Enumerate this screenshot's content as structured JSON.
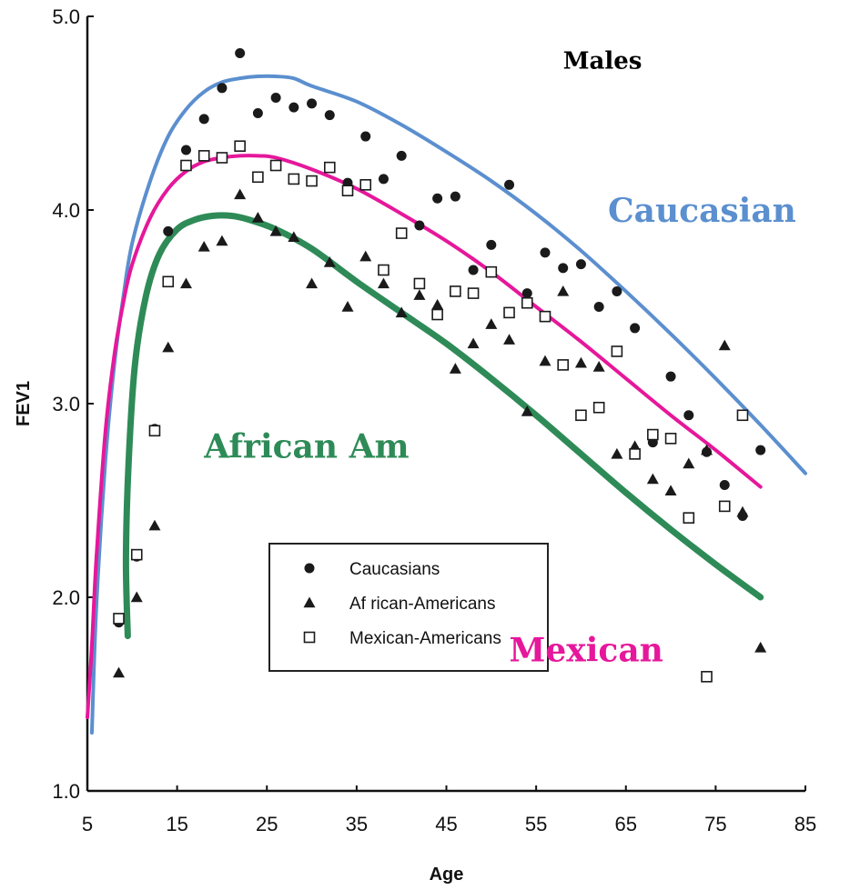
{
  "chart_data": {
    "type": "scatter",
    "title": "",
    "xlabel": "Age",
    "ylabel": "FEV1",
    "xlim": [
      5,
      85
    ],
    "ylim": [
      1.0,
      5.0
    ],
    "x_ticks": [
      5,
      15,
      25,
      35,
      45,
      55,
      65,
      75,
      85
    ],
    "x_tick_labels": [
      "5",
      "15",
      "25",
      "35",
      "45",
      "55",
      "65",
      "75",
      "85"
    ],
    "y_ticks": [
      1.0,
      2.0,
      3.0,
      4.0,
      5.0
    ],
    "y_tick_labels": [
      "1.0",
      "2.0",
      "3.0",
      "4.0",
      "5.0"
    ],
    "grid": false,
    "legend_position": "bottom-center",
    "series": [
      {
        "name": "Caucasians",
        "marker": "circle",
        "points": [
          [
            8.5,
            1.87
          ],
          [
            10.5,
            2.21
          ],
          [
            12.5,
            2.87
          ],
          [
            14,
            3.89
          ],
          [
            16,
            4.31
          ],
          [
            18,
            4.47
          ],
          [
            20,
            4.63
          ],
          [
            22,
            4.81
          ],
          [
            24,
            4.5
          ],
          [
            26,
            4.58
          ],
          [
            28,
            4.53
          ],
          [
            30,
            4.55
          ],
          [
            32,
            4.49
          ],
          [
            34,
            4.14
          ],
          [
            36,
            4.38
          ],
          [
            38,
            4.16
          ],
          [
            40,
            4.28
          ],
          [
            42,
            3.92
          ],
          [
            44,
            4.06
          ],
          [
            46,
            4.07
          ],
          [
            48,
            3.69
          ],
          [
            50,
            3.82
          ],
          [
            52,
            4.13
          ],
          [
            54,
            3.57
          ],
          [
            56,
            3.78
          ],
          [
            58,
            3.7
          ],
          [
            60,
            3.72
          ],
          [
            62,
            3.5
          ],
          [
            64,
            3.58
          ],
          [
            66,
            3.39
          ],
          [
            68,
            2.8
          ],
          [
            70,
            3.14
          ],
          [
            72,
            2.94
          ],
          [
            74,
            2.75
          ],
          [
            76,
            2.58
          ],
          [
            78,
            2.42
          ],
          [
            80,
            2.76
          ]
        ]
      },
      {
        "name": "African-Americans",
        "marker": "triangle",
        "points": [
          [
            8.5,
            1.61
          ],
          [
            10.5,
            2.0
          ],
          [
            12.5,
            2.37
          ],
          [
            14,
            3.29
          ],
          [
            16,
            3.62
          ],
          [
            18,
            3.81
          ],
          [
            20,
            3.84
          ],
          [
            22,
            4.08
          ],
          [
            24,
            3.96
          ],
          [
            26,
            3.89
          ],
          [
            28,
            3.86
          ],
          [
            30,
            3.62
          ],
          [
            32,
            3.73
          ],
          [
            34,
            3.5
          ],
          [
            36,
            3.76
          ],
          [
            38,
            3.62
          ],
          [
            40,
            3.47
          ],
          [
            42,
            3.56
          ],
          [
            44,
            3.51
          ],
          [
            46,
            3.18
          ],
          [
            48,
            3.31
          ],
          [
            50,
            3.41
          ],
          [
            52,
            3.33
          ],
          [
            54,
            2.96
          ],
          [
            56,
            3.22
          ],
          [
            58,
            3.58
          ],
          [
            60,
            3.21
          ],
          [
            62,
            3.19
          ],
          [
            64,
            2.74
          ],
          [
            66,
            2.78
          ],
          [
            68,
            2.61
          ],
          [
            70,
            2.55
          ],
          [
            72,
            2.69
          ],
          [
            74,
            2.76
          ],
          [
            76,
            3.3
          ],
          [
            78,
            2.44
          ],
          [
            80,
            1.74
          ]
        ]
      },
      {
        "name": "Mexican-Americans",
        "marker": "square",
        "points": [
          [
            8.5,
            1.89
          ],
          [
            10.5,
            2.22
          ],
          [
            12.5,
            2.86
          ],
          [
            14,
            3.63
          ],
          [
            16,
            4.23
          ],
          [
            18,
            4.28
          ],
          [
            20,
            4.27
          ],
          [
            22,
            4.33
          ],
          [
            24,
            4.17
          ],
          [
            26,
            4.23
          ],
          [
            28,
            4.16
          ],
          [
            30,
            4.15
          ],
          [
            32,
            4.22
          ],
          [
            34,
            4.1
          ],
          [
            36,
            4.13
          ],
          [
            38,
            3.69
          ],
          [
            40,
            3.88
          ],
          [
            42,
            3.62
          ],
          [
            44,
            3.46
          ],
          [
            46,
            3.58
          ],
          [
            48,
            3.57
          ],
          [
            50,
            3.68
          ],
          [
            52,
            3.47
          ],
          [
            54,
            3.52
          ],
          [
            56,
            3.45
          ],
          [
            58,
            3.2
          ],
          [
            60,
            2.94
          ],
          [
            62,
            2.98
          ],
          [
            64,
            3.27
          ],
          [
            66,
            2.74
          ],
          [
            68,
            2.84
          ],
          [
            70,
            2.82
          ],
          [
            72,
            2.41
          ],
          [
            74,
            1.59
          ],
          [
            76,
            2.47
          ],
          [
            78,
            2.94
          ]
        ]
      }
    ],
    "fitted_curves": [
      {
        "label": "Caucasian",
        "color": "#5b8fcf",
        "points": [
          [
            5.5,
            1.3
          ],
          [
            6,
            1.95
          ],
          [
            7,
            2.7
          ],
          [
            8,
            3.2
          ],
          [
            9,
            3.55
          ],
          [
            10,
            3.83
          ],
          [
            12,
            4.15
          ],
          [
            14,
            4.38
          ],
          [
            16,
            4.52
          ],
          [
            18,
            4.61
          ],
          [
            20,
            4.66
          ],
          [
            22,
            4.68
          ],
          [
            24,
            4.69
          ],
          [
            26,
            4.69
          ],
          [
            28,
            4.68
          ],
          [
            30,
            4.64
          ],
          [
            35,
            4.56
          ],
          [
            40,
            4.44
          ],
          [
            45,
            4.3
          ],
          [
            50,
            4.15
          ],
          [
            55,
            3.98
          ],
          [
            60,
            3.79
          ],
          [
            65,
            3.58
          ],
          [
            70,
            3.36
          ],
          [
            75,
            3.13
          ],
          [
            80,
            2.89
          ],
          [
            85,
            2.64
          ]
        ]
      },
      {
        "label": "Mexican",
        "color": "#e6179b",
        "points": [
          [
            5,
            1.38
          ],
          [
            5.5,
            1.75
          ],
          [
            6,
            2.2
          ],
          [
            7,
            2.85
          ],
          [
            8,
            3.25
          ],
          [
            9,
            3.52
          ],
          [
            10,
            3.72
          ],
          [
            12,
            3.96
          ],
          [
            14,
            4.11
          ],
          [
            16,
            4.2
          ],
          [
            18,
            4.25
          ],
          [
            20,
            4.27
          ],
          [
            22,
            4.28
          ],
          [
            24,
            4.28
          ],
          [
            26,
            4.27
          ],
          [
            30,
            4.21
          ],
          [
            35,
            4.11
          ],
          [
            40,
            3.98
          ],
          [
            45,
            3.84
          ],
          [
            50,
            3.68
          ],
          [
            55,
            3.5
          ],
          [
            60,
            3.32
          ],
          [
            65,
            3.13
          ],
          [
            70,
            2.94
          ],
          [
            75,
            2.76
          ],
          [
            80,
            2.57
          ]
        ]
      },
      {
        "label": "African Am",
        "color": "#2e8b57",
        "points": [
          [
            9.5,
            1.8
          ],
          [
            9.3,
            2.2
          ],
          [
            9.6,
            2.7
          ],
          [
            10.3,
            3.2
          ],
          [
            11.5,
            3.55
          ],
          [
            13,
            3.77
          ],
          [
            15,
            3.9
          ],
          [
            17,
            3.95
          ],
          [
            19,
            3.97
          ],
          [
            21,
            3.97
          ],
          [
            23,
            3.95
          ],
          [
            26,
            3.9
          ],
          [
            30,
            3.8
          ],
          [
            35,
            3.63
          ],
          [
            40,
            3.47
          ],
          [
            45,
            3.31
          ],
          [
            50,
            3.13
          ],
          [
            55,
            2.94
          ],
          [
            60,
            2.74
          ],
          [
            65,
            2.54
          ],
          [
            70,
            2.35
          ],
          [
            75,
            2.17
          ],
          [
            80,
            2.0
          ]
        ]
      }
    ],
    "annotations": [
      {
        "text": "Males",
        "color": "#000000",
        "x": 58,
        "y": 4.73,
        "size": 26
      },
      {
        "text": "Caucasian",
        "color": "#5b8fcf",
        "x": 63,
        "y": 3.94,
        "size": 36
      },
      {
        "text": "African Am",
        "color": "#2e8b57",
        "x": 18,
        "y": 2.72,
        "size": 36
      },
      {
        "text": "Mexican",
        "color": "#e6179b",
        "x": 52,
        "y": 1.67,
        "size": 36
      }
    ],
    "legend": {
      "entries": [
        {
          "marker": "circle",
          "label": "Caucasians"
        },
        {
          "marker": "triangle",
          "label": "Af rican-Americans"
        },
        {
          "marker": "square",
          "label": "Mexican-Americans"
        }
      ]
    }
  }
}
